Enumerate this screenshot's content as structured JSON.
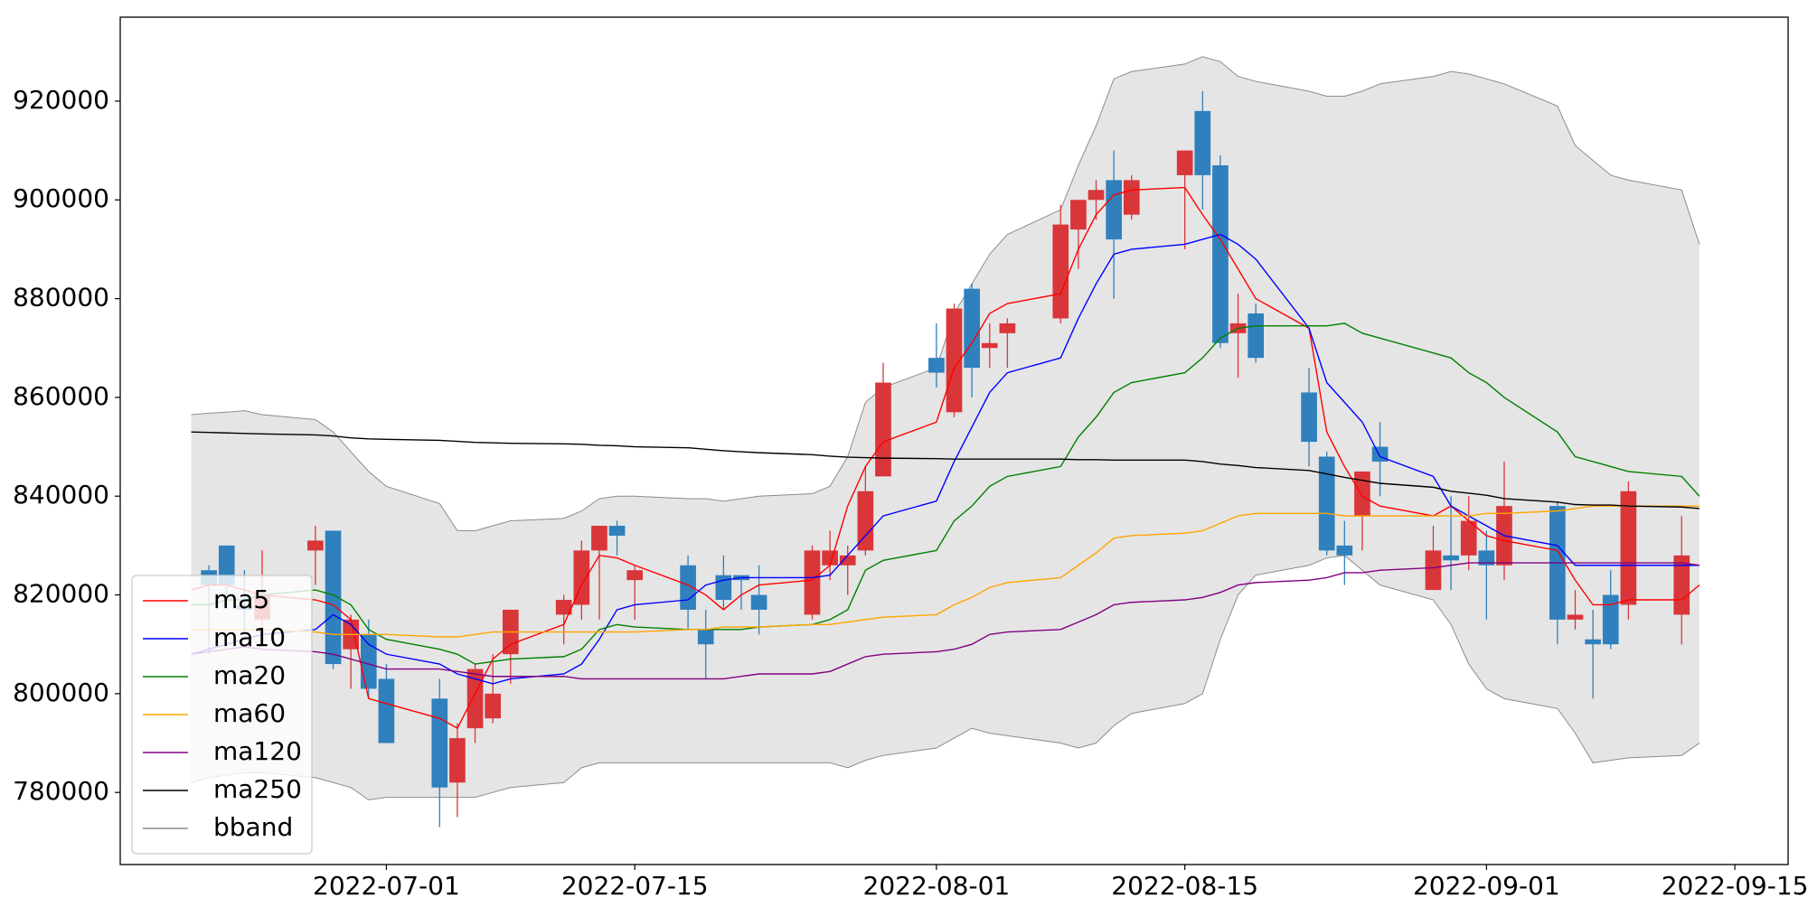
{
  "chart_data": {
    "type": "candlestick",
    "x": [
      "2022-06-20",
      "2022-06-21",
      "2022-06-22",
      "2022-06-23",
      "2022-06-24",
      "2022-06-27",
      "2022-06-28",
      "2022-06-29",
      "2022-06-30",
      "2022-07-01",
      "2022-07-04",
      "2022-07-05",
      "2022-07-06",
      "2022-07-07",
      "2022-07-08",
      "2022-07-11",
      "2022-07-12",
      "2022-07-13",
      "2022-07-14",
      "2022-07-15",
      "2022-07-18",
      "2022-07-19",
      "2022-07-20",
      "2022-07-21",
      "2022-07-22",
      "2022-07-25",
      "2022-07-26",
      "2022-07-27",
      "2022-07-28",
      "2022-07-29",
      "2022-08-01",
      "2022-08-02",
      "2022-08-03",
      "2022-08-04",
      "2022-08-05",
      "2022-08-08",
      "2022-08-09",
      "2022-08-10",
      "2022-08-11",
      "2022-08-12",
      "2022-08-15",
      "2022-08-16",
      "2022-08-17",
      "2022-08-18",
      "2022-08-19",
      "2022-08-22",
      "2022-08-23",
      "2022-08-24",
      "2022-08-25",
      "2022-08-26",
      "2022-08-29",
      "2022-08-30",
      "2022-08-31",
      "2022-09-01",
      "2022-09-02",
      "2022-09-05",
      "2022-09-06",
      "2022-09-07",
      "2022-09-08",
      "2022-09-09",
      "2022-09-12",
      "2022-09-13"
    ],
    "xlim": [
      "2022-06-16",
      "2022-09-18"
    ],
    "xticks": [
      "2022-07-01",
      "2022-07-15",
      "2022-08-01",
      "2022-08-15",
      "2022-09-01",
      "2022-09-15"
    ],
    "ylim": [
      765400,
      937000
    ],
    "yticks": [
      780000,
      800000,
      820000,
      840000,
      860000,
      880000,
      900000,
      920000
    ],
    "candles": {
      "up_color": "#d9363a",
      "down_color": "#2f80bd",
      "open": [
        null,
        825000,
        830000,
        818000,
        815000,
        829000,
        833000,
        809000,
        812000,
        803000,
        799000,
        782000,
        793000,
        795000,
        808000,
        816000,
        818000,
        829000,
        834000,
        823000,
        826000,
        813000,
        824000,
        824000,
        820000,
        816000,
        826000,
        826000,
        829000,
        844000,
        868000,
        857000,
        882000,
        870000,
        873000,
        876000,
        894000,
        900000,
        904000,
        897000,
        905000,
        918000,
        907000,
        873000,
        877000,
        861000,
        848000,
        830000,
        836000,
        850000,
        821000,
        828000,
        828000,
        829000,
        826000,
        838000,
        815000,
        811000,
        820000,
        818000,
        816000,
        null
      ],
      "high": [
        null,
        826000,
        830000,
        825000,
        829000,
        834000,
        833000,
        816000,
        815000,
        806000,
        803000,
        794000,
        806000,
        808000,
        817000,
        820000,
        831000,
        834000,
        835000,
        826000,
        828000,
        817000,
        828000,
        824000,
        826000,
        830000,
        833000,
        830000,
        846000,
        867000,
        875000,
        879000,
        883000,
        875000,
        876000,
        899000,
        900000,
        904000,
        910000,
        905000,
        910000,
        922000,
        909000,
        881000,
        879000,
        866000,
        849000,
        835000,
        845000,
        855000,
        834000,
        840000,
        840000,
        833000,
        847000,
        839000,
        821000,
        817000,
        825000,
        843000,
        836000,
        null
      ],
      "low": [
        null,
        808000,
        819000,
        812000,
        813000,
        822000,
        805000,
        801000,
        799000,
        790000,
        773000,
        775000,
        790000,
        794000,
        802000,
        810000,
        815000,
        815000,
        828000,
        815000,
        813000,
        803000,
        817000,
        817000,
        812000,
        815000,
        823000,
        820000,
        828000,
        844000,
        862000,
        856000,
        860000,
        866000,
        866000,
        875000,
        886000,
        896000,
        880000,
        896000,
        890000,
        898000,
        870000,
        864000,
        867000,
        846000,
        828000,
        822000,
        829000,
        840000,
        821000,
        821000,
        825000,
        815000,
        823000,
        810000,
        813000,
        799000,
        809000,
        815000,
        810000,
        null
      ],
      "close": [
        null,
        822000,
        822000,
        817000,
        820000,
        831000,
        806000,
        815000,
        801000,
        790000,
        781000,
        791000,
        805000,
        800000,
        817000,
        819000,
        829000,
        834000,
        832000,
        825000,
        817000,
        810000,
        819000,
        823000,
        817000,
        829000,
        829000,
        828000,
        841000,
        863000,
        865000,
        878000,
        866000,
        871000,
        875000,
        895000,
        900000,
        902000,
        892000,
        904000,
        910000,
        905000,
        871000,
        875000,
        868000,
        851000,
        829000,
        828000,
        845000,
        847000,
        829000,
        827000,
        835000,
        826000,
        838000,
        815000,
        816000,
        810000,
        810000,
        841000,
        828000,
        null
      ]
    },
    "series": [
      {
        "name": "ma5",
        "color": "#ff0000",
        "values": [
          821000,
          822000,
          822000,
          821000,
          820000,
          819000,
          818000,
          815000,
          799000,
          798000,
          795000,
          793000,
          800000,
          807000,
          810000,
          814000,
          822000,
          828000,
          827500,
          826000,
          822000,
          820000,
          817000,
          820000,
          822000,
          823000,
          826000,
          838000,
          846000,
          851000,
          855000,
          866000,
          871000,
          877000,
          879000,
          881000,
          890000,
          897000,
          901000,
          902000,
          902500,
          897000,
          892000,
          886000,
          880000,
          874000,
          853000,
          846000,
          840000,
          838000,
          836000,
          838000,
          835000,
          832000,
          831000,
          829000,
          823000,
          818000,
          818000,
          819000,
          819000,
          822000
        ]
      },
      {
        "name": "ma10",
        "color": "#0000ff",
        "values": [
          808000,
          809000,
          810000,
          811000,
          812000,
          813000,
          816000,
          814000,
          810000,
          808000,
          806000,
          804000,
          803000,
          802000,
          803000,
          804000,
          806000,
          811000,
          817000,
          818000,
          819000,
          822000,
          823000,
          823500,
          823500,
          823500,
          824000,
          828000,
          832000,
          836000,
          839000,
          847000,
          854000,
          861000,
          865000,
          868000,
          876000,
          883000,
          889000,
          890000,
          891000,
          892000,
          893000,
          891000,
          888000,
          874000,
          863000,
          859000,
          855000,
          848000,
          844000,
          838000,
          836000,
          834000,
          832000,
          830000,
          826000,
          826000,
          826000,
          826000,
          826000,
          826000
        ]
      },
      {
        "name": "ma20",
        "color": "#008000",
        "values": [
          818000,
          818000,
          819000,
          819000,
          820000,
          821000,
          820000,
          818000,
          813000,
          811000,
          809000,
          808000,
          806000,
          806500,
          807000,
          807500,
          809000,
          813000,
          814000,
          813500,
          813000,
          813000,
          813000,
          813000,
          813500,
          814000,
          815000,
          817000,
          825000,
          827000,
          829000,
          835000,
          838000,
          842000,
          844000,
          846000,
          852000,
          856000,
          861000,
          863000,
          865000,
          868000,
          872000,
          874000,
          874500,
          874500,
          874500,
          875000,
          873000,
          872000,
          869000,
          868000,
          865000,
          863000,
          860000,
          853000,
          848000,
          847000,
          846000,
          845000,
          844000,
          840000
        ]
      },
      {
        "name": "ma60",
        "color": "#ffa500",
        "values": [
          813000,
          813000,
          813000,
          813000,
          813000,
          812500,
          812000,
          812000,
          812000,
          812000,
          811500,
          811500,
          812000,
          812500,
          812500,
          812500,
          812500,
          812500,
          812500,
          812500,
          813000,
          813000,
          813500,
          813500,
          813500,
          814000,
          814000,
          814500,
          815000,
          815500,
          816000,
          818000,
          819500,
          821500,
          822500,
          823500,
          826000,
          828500,
          831500,
          832000,
          832500,
          833000,
          834500,
          836000,
          836500,
          836500,
          836500,
          836000,
          836000,
          836000,
          836000,
          836000,
          836000,
          836500,
          836500,
          837000,
          837500,
          838000,
          838000,
          838000,
          838000,
          838000
        ]
      },
      {
        "name": "ma120",
        "color": "#800080",
        "values": [
          808000,
          808500,
          809000,
          809500,
          809000,
          808500,
          808000,
          807000,
          806000,
          805000,
          805000,
          804500,
          804000,
          803500,
          803500,
          803500,
          803000,
          803000,
          803000,
          803000,
          803000,
          803000,
          803000,
          803500,
          804000,
          804000,
          804500,
          806000,
          807500,
          808000,
          808500,
          809000,
          810000,
          812000,
          812500,
          813000,
          814500,
          816000,
          818000,
          818500,
          819000,
          819500,
          820500,
          822000,
          822500,
          823000,
          823500,
          824500,
          824500,
          825000,
          825500,
          826000,
          826500,
          826500,
          826500,
          826500,
          826500,
          826500,
          826500,
          826500,
          826500,
          826000
        ]
      },
      {
        "name": "ma250",
        "color": "#000000",
        "values": [
          853000,
          852900,
          852800,
          852700,
          852600,
          852400,
          852200,
          851800,
          851600,
          851500,
          851300,
          851100,
          850900,
          850800,
          850700,
          850600,
          850500,
          850300,
          850200,
          850000,
          849800,
          849500,
          849200,
          849000,
          848800,
          848400,
          848100,
          847900,
          847800,
          847700,
          847600,
          847500,
          847500,
          847500,
          847500,
          847500,
          847400,
          847400,
          847300,
          847300,
          847300,
          847000,
          846500,
          846200,
          845800,
          845200,
          844500,
          843800,
          843200,
          842600,
          841800,
          841000,
          840600,
          840200,
          839500,
          838800,
          838300,
          838200,
          838200,
          838000,
          837800,
          837500
        ]
      }
    ],
    "band": {
      "name": "bband",
      "color": "#8c8c8c",
      "fill": "#e5e5e5",
      "upper": [
        856500,
        856800,
        857000,
        857300,
        856500,
        855500,
        853000,
        849000,
        845000,
        842000,
        838500,
        833000,
        833000,
        834000,
        835000,
        835500,
        837000,
        839500,
        840000,
        840000,
        839500,
        839500,
        839000,
        839500,
        840000,
        840500,
        842000,
        848000,
        859000,
        862000,
        866000,
        877000,
        883000,
        889000,
        893000,
        898000,
        907000,
        915000,
        924500,
        926000,
        927500,
        929000,
        928000,
        925000,
        924000,
        922000,
        921000,
        921000,
        922000,
        923500,
        925000,
        926000,
        925500,
        924500,
        923500,
        919000,
        911000,
        908000,
        905000,
        904000,
        902000,
        891000
      ],
      "lower": [
        782000,
        783000,
        783500,
        784000,
        784000,
        783000,
        782000,
        781000,
        778500,
        779000,
        779000,
        779000,
        779000,
        780000,
        781000,
        782000,
        785000,
        786000,
        786000,
        786000,
        786000,
        786000,
        786000,
        786000,
        786000,
        786000,
        786000,
        785000,
        786500,
        787500,
        789000,
        791000,
        793000,
        792000,
        791500,
        790000,
        789000,
        790000,
        793500,
        796000,
        798000,
        800000,
        811000,
        820000,
        824000,
        826000,
        827500,
        828000,
        825000,
        822000,
        819000,
        814000,
        806000,
        801000,
        799000,
        797000,
        792000,
        786000,
        786500,
        787000,
        787500,
        790000
      ]
    },
    "legend": "lower left"
  }
}
